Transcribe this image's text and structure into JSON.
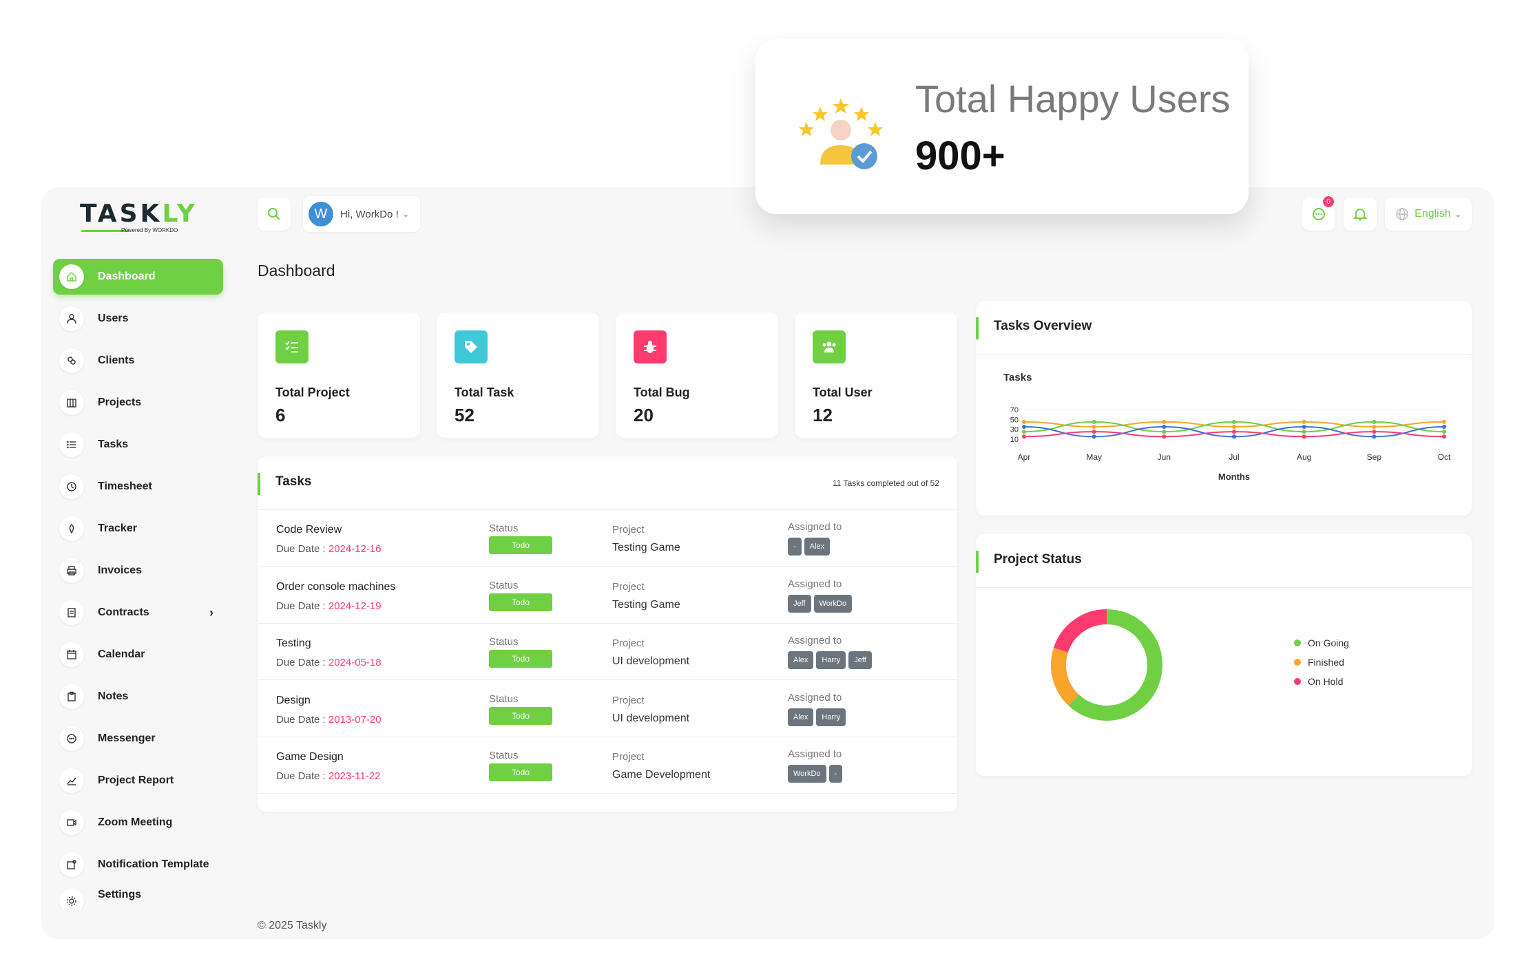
{
  "popup": {
    "heading": "Total Happy Users",
    "value": "900+"
  },
  "logo": {
    "text_a": "TASK",
    "text_b": "LY",
    "sub": "Powered By WORKDO"
  },
  "header": {
    "greeting": "Hi, WorkDo !",
    "avatar_letter": "W",
    "msg_count": "0",
    "language": "English"
  },
  "page_title": "Dashboard",
  "sidebar": {
    "items": [
      {
        "label": "Dashboard",
        "icon": "home-icon"
      },
      {
        "label": "Users",
        "icon": "user-icon"
      },
      {
        "label": "Clients",
        "icon": "clients-icon"
      },
      {
        "label": "Projects",
        "icon": "projects-icon"
      },
      {
        "label": "Tasks",
        "icon": "list-icon"
      },
      {
        "label": "Timesheet",
        "icon": "clock-icon"
      },
      {
        "label": "Tracker",
        "icon": "tracker-icon"
      },
      {
        "label": "Invoices",
        "icon": "printer-icon"
      },
      {
        "label": "Contracts",
        "icon": "contract-icon"
      },
      {
        "label": "Calendar",
        "icon": "calendar-icon"
      },
      {
        "label": "Notes",
        "icon": "clipboard-icon"
      },
      {
        "label": "Messenger",
        "icon": "chat-icon"
      },
      {
        "label": "Project Report",
        "icon": "chart-icon"
      },
      {
        "label": "Zoom Meeting",
        "icon": "video-icon"
      },
      {
        "label": "Notification Template",
        "icon": "notification-icon"
      },
      {
        "label": "Settings",
        "icon": "gear-icon"
      }
    ]
  },
  "stats": [
    {
      "label": "Total Project",
      "value": "6",
      "color": "#6fd043",
      "icon": "checklist-icon"
    },
    {
      "label": "Total Task",
      "value": "52",
      "color": "#3ec8d8",
      "icon": "tag-icon"
    },
    {
      "label": "Total Bug",
      "value": "20",
      "color": "#ff3a6e",
      "icon": "bug-icon"
    },
    {
      "label": "Total User",
      "value": "12",
      "color": "#6fd043",
      "icon": "users-icon"
    }
  ],
  "tasks": {
    "title": "Tasks",
    "summary": "11 Tasks completed out of 52",
    "status_label": "Status",
    "project_label": "Project",
    "assigned_label": "Assigned to",
    "due_label": "Due Date : ",
    "rows": [
      {
        "name": "Code Review",
        "due": "2024-12-16",
        "status": "Todo",
        "project": "Testing Game",
        "assigned": [
          "-",
          "Alex"
        ]
      },
      {
        "name": "Order console machines",
        "due": "2024-12-19",
        "status": "Todo",
        "project": "Testing Game",
        "assigned": [
          "Jeff",
          "WorkDo"
        ]
      },
      {
        "name": "Testing",
        "due": "2024-05-18",
        "status": "Todo",
        "project": "UI development",
        "assigned": [
          "Alex",
          "Harry",
          "Jeff"
        ]
      },
      {
        "name": "Design",
        "due": "2013-07-20",
        "status": "Todo",
        "project": "UI development",
        "assigned": [
          "Alex",
          "Harry"
        ]
      },
      {
        "name": "Game Design",
        "due": "2023-11-22",
        "status": "Todo",
        "project": "Game Development",
        "assigned": [
          "WorkDo",
          "-"
        ]
      }
    ]
  },
  "tasks_overview": {
    "title": "Tasks Overview"
  },
  "project_status": {
    "title": "Project Status",
    "legend": [
      {
        "label": "On Going",
        "color": "#6fd043"
      },
      {
        "label": "Finished",
        "color": "#f9a42b"
      },
      {
        "label": "On Hold",
        "color": "#ff3a6e"
      }
    ]
  },
  "chart_data": [
    {
      "type": "line",
      "title": "Tasks",
      "xlabel": "Months",
      "ylabel": "",
      "categories": [
        "Apr",
        "May",
        "Jun",
        "Jul",
        "Aug",
        "Sep",
        "Oct"
      ],
      "yticks": [
        10,
        30,
        50,
        70
      ],
      "ylim": [
        0,
        70
      ],
      "grid": true,
      "series": [
        {
          "color": "#f9a42b",
          "values": [
            45,
            35,
            45,
            35,
            45,
            35,
            45
          ]
        },
        {
          "color": "#6fd043",
          "values": [
            25,
            45,
            25,
            45,
            25,
            45,
            25
          ]
        },
        {
          "color": "#3f6fd7",
          "values": [
            35,
            15,
            35,
            15,
            35,
            15,
            35
          ]
        },
        {
          "color": "#ff3a6e",
          "values": [
            15,
            25,
            15,
            25,
            15,
            25,
            15
          ]
        }
      ]
    },
    {
      "type": "pie",
      "categories": [
        "On Going",
        "Finished",
        "On Hold"
      ],
      "values": [
        62,
        18,
        20
      ],
      "colors": [
        "#6fd043",
        "#f9a42b",
        "#ff3a6e"
      ]
    }
  ],
  "footer": "© 2025 Taskly"
}
